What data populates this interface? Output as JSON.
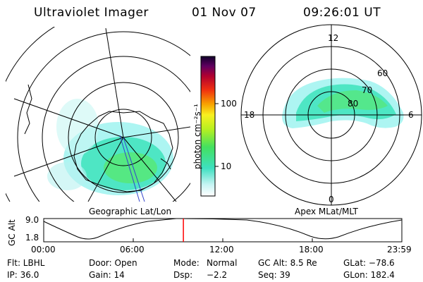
{
  "header": {
    "instrument": "Ultraviolet Imager",
    "date": "01 Nov 07",
    "time": "09:26:01 UT"
  },
  "colorbar": {
    "unit_label": "photon cm⁻²s⁻¹",
    "ticks": [
      "100",
      "10"
    ]
  },
  "left_panel": {
    "label": "Geographic Lat/Lon"
  },
  "right_panel": {
    "label": "Apex MLat/MLT",
    "mlt_labels": {
      "top": "12",
      "left": "18",
      "right": "6",
      "bottom": "0"
    },
    "lat_labels": [
      "60",
      "70",
      "80"
    ]
  },
  "altitude_plot": {
    "ylabel": "GC Alt",
    "y_ticks": [
      "9.0",
      "1.8"
    ],
    "x_ticks": [
      "00:00",
      "06:00",
      "12:00",
      "18:00",
      "23:59"
    ],
    "current_time_fraction": 0.39
  },
  "info": {
    "row1": {
      "filter": "Flt: LBHL",
      "door": "Door: Open",
      "mode_label": "Mode:",
      "mode_value": "Normal",
      "gc_alt": "GC Alt: 8.5 Re",
      "glat": "GLat: −78.6"
    },
    "row2": {
      "ip": "IP: 36.0",
      "gain": "Gain: 14",
      "dsp_label": "Dsp:",
      "dsp_value": "−2.2",
      "seq": "Seq: 39",
      "glon": "GLon: 182.4"
    }
  },
  "colors": {
    "aurora_low": "#9ff3f0",
    "aurora_mid": "#2fe0b4",
    "aurora_high": "#58e868",
    "time_marker": "#ff0000",
    "meridian": "#3344cc"
  }
}
